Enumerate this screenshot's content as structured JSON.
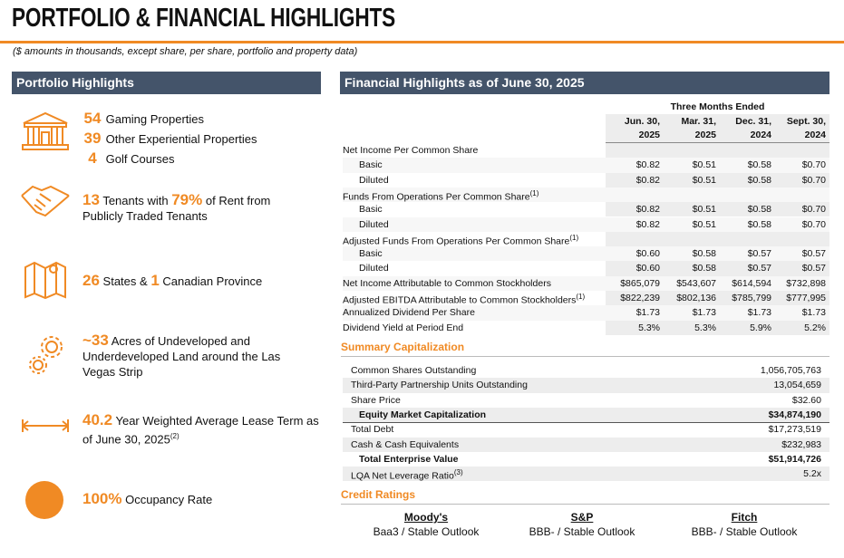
{
  "header": {
    "title": "PORTFOLIO & FINANCIAL HIGHLIGHTS",
    "subtitle": "($ amounts in thousands, except share, per share, portfolio and property data)"
  },
  "portfolio": {
    "title": "Portfolio Highlights",
    "items": [
      {
        "lines": [
          [
            {
              "text": "54",
              "highlight": true
            },
            {
              "text": "Gaming Properties"
            }
          ],
          [
            {
              "text": "39",
              "highlight": true
            },
            {
              "text": "Other Experiential Properties"
            }
          ],
          [
            {
              "text": "4",
              "highlight": true
            },
            {
              "text": "Golf Courses"
            }
          ]
        ]
      },
      {
        "lines": [
          [
            {
              "text": "13",
              "highlight": true
            },
            {
              "text": "Tenants with"
            },
            {
              "text": "79%",
              "highlight": true
            },
            {
              "text": "of Rent from Publicly Traded Tenants"
            }
          ]
        ]
      },
      {
        "lines": [
          [
            {
              "text": "26",
              "highlight": true
            },
            {
              "text": "States &"
            },
            {
              "text": "1",
              "highlight": true
            },
            {
              "text": "Canadian Province"
            }
          ]
        ]
      },
      {
        "lines": [
          [
            {
              "text": "~33",
              "highlight": true
            },
            {
              "text": "Acres of Undeveloped and Underdeveloped Land around the Las Vegas Strip"
            }
          ]
        ]
      },
      {
        "lines": [
          [
            {
              "text": "40.2",
              "highlight": true
            },
            {
              "text": "Year Weighted Average Lease Term as of June 30, 2025"
            },
            {
              "text": "(2)",
              "sup": true
            }
          ]
        ]
      },
      {
        "lines": [
          [
            {
              "text": "100%",
              "highlight": true
            },
            {
              "text": "Occupancy Rate"
            }
          ]
        ]
      }
    ]
  },
  "financial": {
    "title": "Financial Highlights as of June 30, 2025",
    "period": "Three Months Ended",
    "columns": [
      [
        "Jun. 30,",
        "2025"
      ],
      [
        "Mar. 31,",
        "2025"
      ],
      [
        "Dec. 31,",
        "2024"
      ],
      [
        "Sept. 30,",
        "2024"
      ]
    ],
    "rows": [
      {
        "label": "Net Income Per Common Share",
        "values": []
      },
      {
        "label": "Basic",
        "indent": true,
        "values": [
          "$0.82",
          "$0.51",
          "$0.58",
          "$0.70"
        ]
      },
      {
        "label": "Diluted",
        "indent": true,
        "values": [
          "$0.82",
          "$0.51",
          "$0.58",
          "$0.70"
        ]
      },
      {
        "label": "Funds From Operations Per Common Share",
        "note": "(1)",
        "values": []
      },
      {
        "label": "Basic",
        "indent": true,
        "values": [
          "$0.82",
          "$0.51",
          "$0.58",
          "$0.70"
        ]
      },
      {
        "label": "Diluted",
        "indent": true,
        "values": [
          "$0.82",
          "$0.51",
          "$0.58",
          "$0.70"
        ]
      },
      {
        "label": "Adjusted Funds From Operations Per Common Share",
        "note": "(1)",
        "values": []
      },
      {
        "label": "Basic",
        "indent": true,
        "values": [
          "$0.60",
          "$0.58",
          "$0.57",
          "$0.57"
        ]
      },
      {
        "label": "Diluted",
        "indent": true,
        "values": [
          "$0.60",
          "$0.58",
          "$0.57",
          "$0.57"
        ]
      },
      {
        "label": "Net Income Attributable to Common Stockholders",
        "values": [
          "$865,079",
          "$543,607",
          "$614,594",
          "$732,898"
        ]
      },
      {
        "label": "Adjusted EBITDA Attributable to Common Stockholders",
        "note": "(1)",
        "values": [
          "$822,239",
          "$802,136",
          "$785,799",
          "$777,995"
        ]
      },
      {
        "label": "Annualized Dividend Per Share",
        "values": [
          "$1.73",
          "$1.73",
          "$1.73",
          "$1.73"
        ]
      },
      {
        "label": "Dividend Yield at Period End",
        "values": [
          "5.3%",
          "5.3%",
          "5.9%",
          "5.2%"
        ]
      }
    ]
  },
  "capitalization": {
    "title": "Summary Capitalization",
    "rows": [
      {
        "label": "Common Shares Outstanding",
        "value": "1,056,705,763"
      },
      {
        "label": "Third-Party Partnership Units Outstanding",
        "value": "13,054,659"
      },
      {
        "label": "Share Price",
        "value": "$32.60"
      },
      {
        "label": "Equity Market Capitalization",
        "value": "$34,874,190",
        "bold": true
      },
      {
        "label": "Total Debt",
        "value": "$17,273,519"
      },
      {
        "label": "Cash & Cash Equivalents",
        "value": "$232,983"
      },
      {
        "label": "Total Enterprise Value",
        "value": "$51,914,726",
        "bold": true
      },
      {
        "label": "LQA Net Leverage Ratio",
        "note": "(3)",
        "value": "5.2x"
      }
    ]
  },
  "credit": {
    "title": "Credit Ratings",
    "ratings": [
      {
        "agency": "Moody's",
        "rating": "Baa3 / Stable Outlook"
      },
      {
        "agency": "S&P",
        "rating": "BBB- / Stable Outlook"
      },
      {
        "agency": "Fitch",
        "rating": "BBB- / Stable Outlook"
      }
    ]
  }
}
